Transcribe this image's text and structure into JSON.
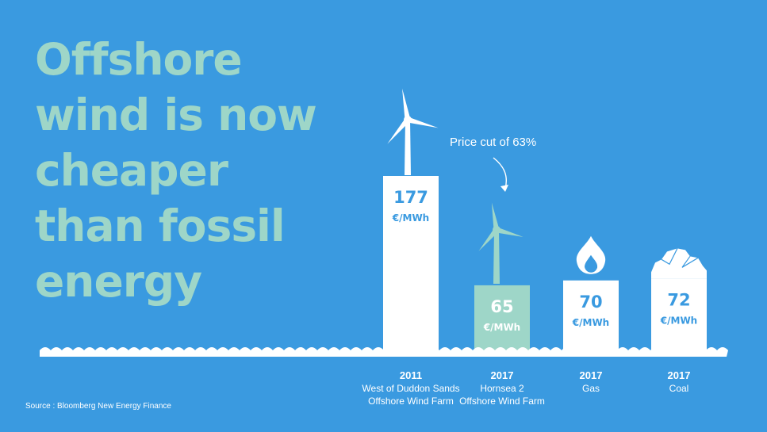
{
  "headline": [
    "Offshore",
    "wind is now",
    "cheaper",
    "than fossil",
    "energy"
  ],
  "source": "Source : Bloomberg New Energy Finance",
  "annotation": "Price cut of 63%",
  "colors": {
    "background": "#3a9ae0",
    "headline": "#9ed6c8",
    "bar": "#ffffff",
    "highlight_bar": "#9ed6c8",
    "value_text": "#3a9ae0",
    "value_text_highlight": "#ffffff"
  },
  "chart_data": {
    "type": "bar",
    "title": "Offshore wind is now cheaper than fossil energy",
    "xlabel": "",
    "ylabel": "",
    "unit": "€/MWh",
    "ylim": [
      0,
      200
    ],
    "categories": [
      {
        "year": "2011",
        "name": [
          "West of Duddon Sands",
          "Offshore Wind Farm"
        ],
        "icon": "wind-turbine-icon"
      },
      {
        "year": "2017",
        "name": [
          "Hornsea 2",
          "Offshore Wind Farm"
        ],
        "icon": "wind-turbine-icon"
      },
      {
        "year": "2017",
        "name": [
          "Gas"
        ],
        "icon": "flame-icon"
      },
      {
        "year": "2017",
        "name": [
          "Coal"
        ],
        "icon": "coal-icon"
      }
    ],
    "values": [
      177,
      65,
      70,
      72
    ],
    "highlight_index": 1
  }
}
